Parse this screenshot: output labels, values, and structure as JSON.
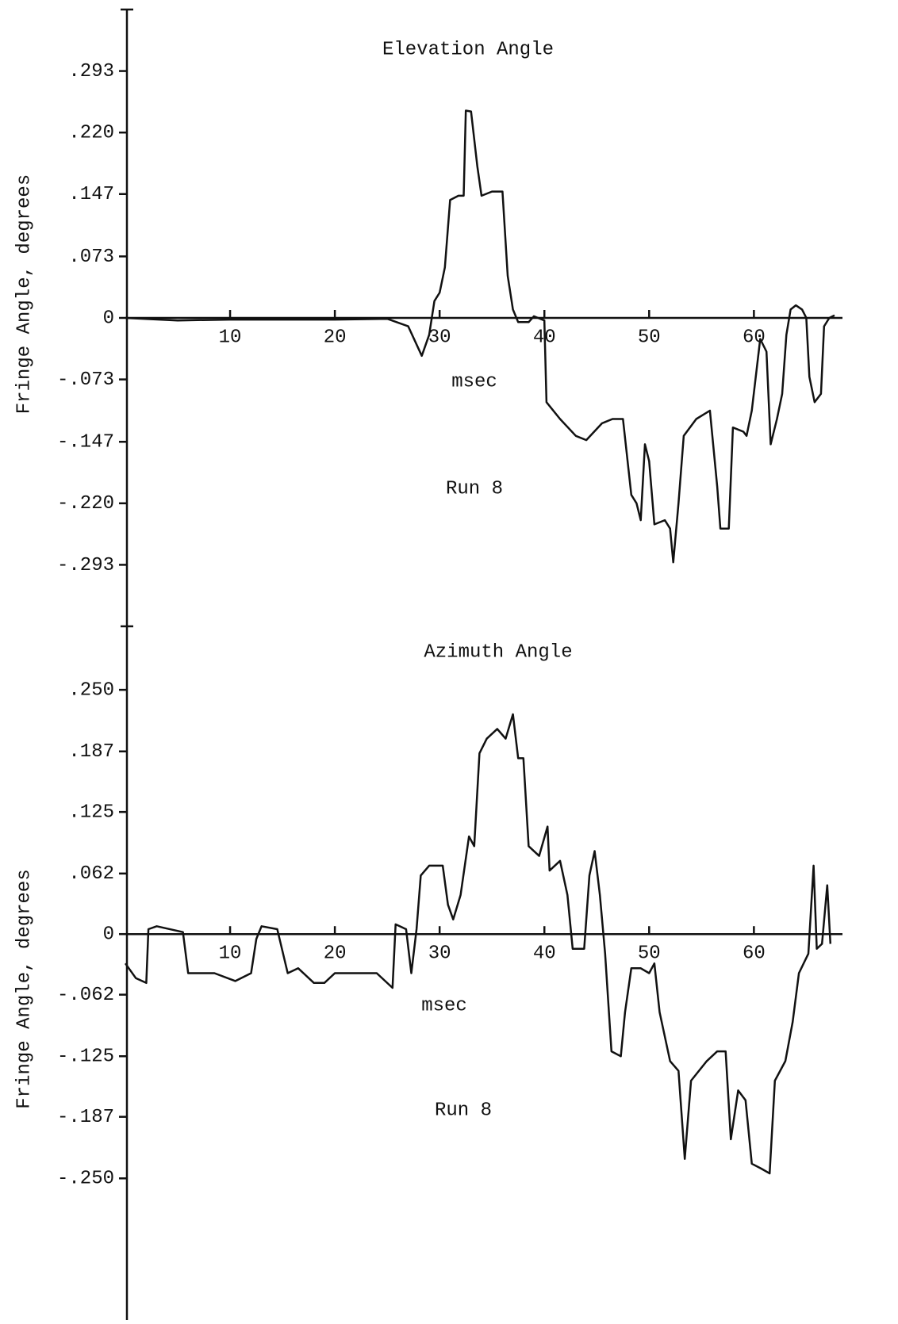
{
  "chart_data": [
    {
      "type": "line",
      "title": "Elevation Angle",
      "xlabel": "msec",
      "ylabel": "Fringe Angle, degrees",
      "annotation": "Run 8",
      "color": "#111111",
      "xlim": [
        0,
        68
      ],
      "xticks": [
        10,
        20,
        30,
        40,
        50,
        60
      ],
      "ylim": [
        -0.366,
        0.366
      ],
      "yticks": [
        {
          "value": 0.293,
          "label": ".293"
        },
        {
          "value": 0.22,
          "label": ".220"
        },
        {
          "value": 0.147,
          "label": ".147"
        },
        {
          "value": 0.073,
          "label": ".073"
        },
        0,
        {
          "value": -0.073,
          "label": "-.073"
        },
        {
          "value": -0.147,
          "label": "-.147"
        },
        {
          "value": -0.22,
          "label": "-.220"
        },
        {
          "value": -0.293,
          "label": "-.293"
        }
      ],
      "x": [
        0,
        5,
        10,
        20,
        25,
        27,
        28.3,
        29,
        29.5,
        30,
        30.5,
        31,
        31.8,
        32.3,
        32.5,
        33,
        33.6,
        34,
        35,
        36,
        36.5,
        37,
        37.5,
        38.5,
        39,
        40,
        40.2,
        41.5,
        43,
        44,
        45.5,
        46.5,
        47.5,
        48.3,
        48.8,
        49.2,
        49.6,
        50,
        50.5,
        51.5,
        52,
        52.3,
        52.8,
        53.3,
        54.5,
        55.8,
        56.5,
        56.8,
        57.6,
        58,
        59,
        59.3,
        59.8,
        60.6,
        61.2,
        61.6,
        62.2,
        62.7,
        63.1,
        63.5,
        64,
        64.6,
        65,
        65.3,
        65.8,
        66.4,
        66.7,
        67.2,
        67.7
      ],
      "values": [
        0,
        -0.003,
        -0.002,
        -0.002,
        -0.001,
        -0.01,
        -0.045,
        -0.02,
        0.02,
        0.03,
        0.06,
        0.14,
        0.145,
        0.145,
        0.246,
        0.245,
        0.18,
        0.145,
        0.15,
        0.15,
        0.05,
        0.01,
        -0.005,
        -0.005,
        0.002,
        -0.003,
        -0.1,
        -0.12,
        -0.14,
        -0.145,
        -0.125,
        -0.12,
        -0.12,
        -0.21,
        -0.22,
        -0.24,
        -0.15,
        -0.17,
        -0.245,
        -0.24,
        -0.25,
        -0.29,
        -0.22,
        -0.14,
        -0.12,
        -0.11,
        -0.2,
        -0.25,
        -0.25,
        -0.13,
        -0.135,
        -0.14,
        -0.11,
        -0.025,
        -0.04,
        -0.15,
        -0.12,
        -0.09,
        -0.02,
        0.01,
        0.015,
        0.01,
        0,
        -0.07,
        -0.1,
        -0.09,
        -0.01,
        0,
        0.003
      ]
    },
    {
      "type": "line",
      "title": "Azimuth Angle",
      "xlabel": "msec",
      "ylabel": "Fringe Angle, degrees",
      "annotation": "Run 8",
      "color": "#111111",
      "xlim": [
        0,
        68
      ],
      "xticks": [
        10,
        20,
        30,
        40,
        50,
        60
      ],
      "ylim": [
        -0.395,
        0.315
      ],
      "yticks": [
        {
          "value": 0.25,
          "label": ".250"
        },
        {
          "value": 0.187,
          "label": ".187"
        },
        {
          "value": 0.125,
          "label": ".125"
        },
        {
          "value": 0.062,
          "label": ".062"
        },
        0,
        {
          "value": -0.062,
          "label": "-.062"
        },
        {
          "value": -0.125,
          "label": "-.125"
        },
        {
          "value": -0.187,
          "label": "-.187"
        },
        {
          "value": -0.25,
          "label": "-.250"
        }
      ],
      "x": [
        0,
        1,
        2,
        2.2,
        3,
        5.5,
        6,
        8.5,
        10.5,
        12,
        12.5,
        13,
        14.5,
        15.5,
        16.5,
        18,
        19,
        20,
        22,
        24,
        25.5,
        25.8,
        26.8,
        27.3,
        27.8,
        28.2,
        29,
        30.3,
        30.8,
        31.3,
        32,
        32.8,
        33.3,
        33.8,
        34.5,
        35.5,
        36.3,
        37,
        37.5,
        38,
        38.5,
        39.5,
        40.3,
        40.5,
        41.5,
        42.2,
        42.7,
        43.8,
        44.3,
        44.8,
        45.3,
        45.8,
        46.4,
        47.3,
        47.7,
        48.3,
        49.2,
        50,
        50.5,
        51,
        52,
        52.8,
        53.4,
        54,
        55.5,
        56.5,
        57.3,
        57.8,
        58.5,
        59.2,
        59.8,
        60.7,
        61.5,
        62,
        63,
        63.7,
        64.3,
        65.2,
        65.7,
        66,
        66.5,
        67,
        67.3
      ],
      "values": [
        -0.03,
        -0.045,
        -0.05,
        0.005,
        0.008,
        0.002,
        -0.04,
        -0.04,
        -0.048,
        -0.04,
        -0.005,
        0.008,
        0.005,
        -0.04,
        -0.035,
        -0.05,
        -0.05,
        -0.04,
        -0.04,
        -0.04,
        -0.055,
        0.01,
        0.005,
        -0.04,
        0.005,
        0.06,
        0.07,
        0.07,
        0.03,
        0.015,
        0.04,
        0.1,
        0.09,
        0.185,
        0.2,
        0.21,
        0.2,
        0.225,
        0.18,
        0.18,
        0.09,
        0.08,
        0.11,
        0.065,
        0.075,
        0.04,
        -0.015,
        -0.015,
        0.06,
        0.085,
        0.04,
        -0.02,
        -0.12,
        -0.125,
        -0.08,
        -0.035,
        -0.035,
        -0.04,
        -0.03,
        -0.08,
        -0.13,
        -0.14,
        -0.23,
        -0.15,
        -0.13,
        -0.12,
        -0.12,
        -0.21,
        -0.16,
        -0.17,
        -0.235,
        -0.24,
        -0.245,
        -0.15,
        -0.13,
        -0.09,
        -0.04,
        -0.02,
        0.07,
        -0.015,
        -0.01,
        0.05,
        -0.01
      ]
    }
  ]
}
